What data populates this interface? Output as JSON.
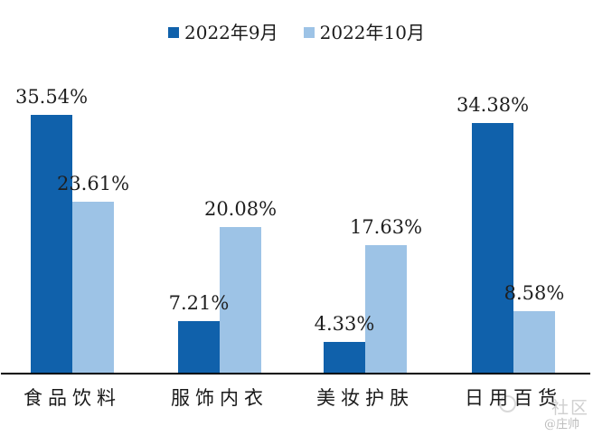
{
  "chart_data": {
    "type": "bar",
    "title": "",
    "categories": [
      "食品饮料",
      "服饰内衣",
      "美妆护肤",
      "日用百货"
    ],
    "series": [
      {
        "name": "2022年9月",
        "color": "#1061ab",
        "values": [
          35.54,
          7.21,
          4.33,
          34.38
        ]
      },
      {
        "name": "2022年10月",
        "color": "#9dc3e6",
        "values": [
          23.61,
          20.08,
          17.63,
          8.58
        ]
      }
    ],
    "data_labels": [
      [
        "35.54%",
        "7.21%",
        "4.33%",
        "34.38%"
      ],
      [
        "23.61%",
        "20.08%",
        "17.63%",
        "8.58%"
      ]
    ],
    "xlabel": "",
    "ylabel": "",
    "ylim": [
      0,
      40
    ],
    "value_axis_visible": false,
    "grid": false,
    "legend_position": "top",
    "axis_line_color": "#000000"
  },
  "watermark": {
    "line1": "社区",
    "line2": "@庄帅"
  }
}
